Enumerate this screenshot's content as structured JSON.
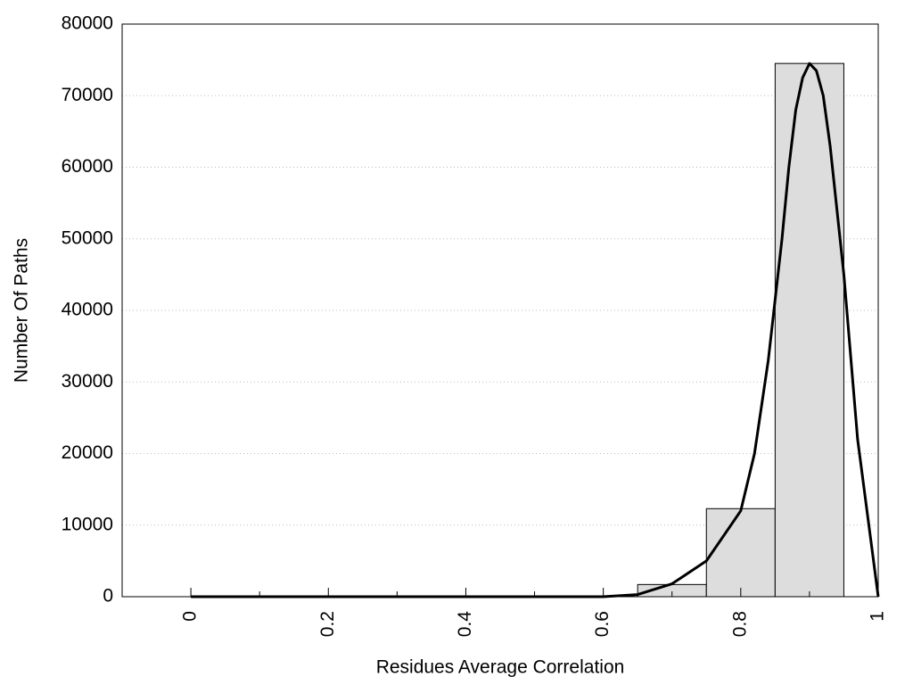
{
  "chart_data": {
    "type": "histogram",
    "xlabel": "Residues Average Correlation",
    "ylabel": "Number Of Paths",
    "bins": [
      0.05,
      0.15,
      0.25,
      0.35,
      0.45,
      0.55,
      0.65,
      0.75,
      0.85,
      0.95
    ],
    "counts": [
      0,
      0,
      0,
      0,
      0,
      0,
      1700,
      12300,
      74500
    ],
    "bar_color": "#dddddd",
    "curve": {
      "color": "#000000",
      "x": [
        0,
        0.1,
        0.2,
        0.3,
        0.4,
        0.5,
        0.6,
        0.65,
        0.7,
        0.75,
        0.8,
        0.82,
        0.84,
        0.86,
        0.87,
        0.88,
        0.89,
        0.9,
        0.91,
        0.92,
        0.93,
        0.95,
        0.97,
        1.0
      ],
      "y": [
        0,
        0,
        0,
        0,
        0,
        0,
        0,
        300,
        1800,
        5000,
        12000,
        20000,
        33000,
        50000,
        60000,
        68000,
        72500,
        74500,
        73500,
        70000,
        63000,
        45000,
        22000,
        0
      ]
    },
    "xlim": [
      -0.1,
      1
    ],
    "ylim": [
      0,
      80000
    ],
    "xticks": [
      0,
      0.2,
      0.4,
      0.6,
      0.8,
      1
    ],
    "xminorticks": [
      0.1,
      0.3,
      0.5,
      0.7,
      0.9
    ],
    "yticks": [
      0,
      10000,
      20000,
      30000,
      40000,
      50000,
      60000,
      70000,
      80000
    ],
    "grid": true
  }
}
